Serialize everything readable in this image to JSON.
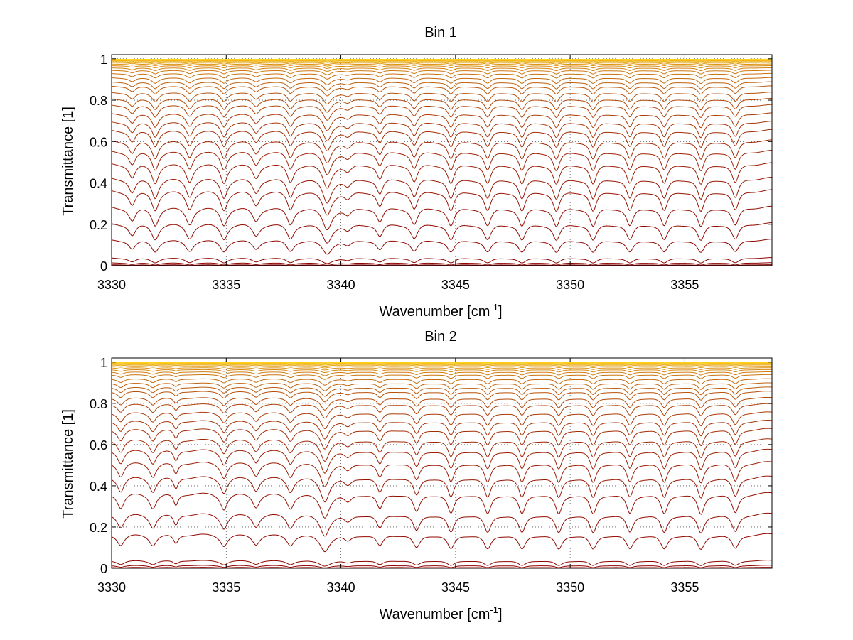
{
  "figure": {
    "background": "#ffffff"
  },
  "chart_data": [
    {
      "type": "line",
      "title": "Bin 1",
      "xlabel": "Wavenumber [cm",
      "xlabel_sup": "-1",
      "xlabel_tail": "]",
      "ylabel": "Transmittance [1]",
      "xlim": [
        3330,
        3358.8
      ],
      "ylim": [
        0,
        1.02
      ],
      "xticks": [
        3330,
        3335,
        3340,
        3345,
        3350,
        3355
      ],
      "yticks": [
        0,
        0.2,
        0.4,
        0.6,
        0.8,
        1
      ],
      "xtick_labels": [
        "3330",
        "3335",
        "3340",
        "3345",
        "3350",
        "3355"
      ],
      "ytick_labels": [
        "0",
        "0.2",
        "0.4",
        "0.6",
        "0.8",
        "1"
      ],
      "grid": true,
      "series_colors_from": "#8b0000",
      "series_colors_to": "#ffd21a",
      "baselines": [
        0.001,
        0.005,
        0.015,
        0.04,
        0.13,
        0.21,
        0.29,
        0.37,
        0.43,
        0.5,
        0.56,
        0.61,
        0.66,
        0.7,
        0.74,
        0.78,
        0.81,
        0.84,
        0.87,
        0.89,
        0.91,
        0.93,
        0.945,
        0.957,
        0.967,
        0.975,
        0.981,
        0.986,
        0.99,
        0.993,
        0.996,
        0.998
      ],
      "absorption_lines": [
        {
          "x": 3330.9,
          "depth": 0.55,
          "width": 0.17
        },
        {
          "x": 3331.9,
          "depth": 0.75,
          "width": 0.17
        },
        {
          "x": 3333.4,
          "depth": 0.7,
          "width": 0.18
        },
        {
          "x": 3334.9,
          "depth": 0.75,
          "width": 0.17
        },
        {
          "x": 3336.3,
          "depth": 0.55,
          "width": 0.18
        },
        {
          "x": 3337.8,
          "depth": 0.72,
          "width": 0.17
        },
        {
          "x": 3339.4,
          "depth": 0.97,
          "width": 0.22
        },
        {
          "x": 3340.3,
          "depth": 0.3,
          "width": 0.2
        },
        {
          "x": 3341.7,
          "depth": 0.6,
          "width": 0.16
        },
        {
          "x": 3343.2,
          "depth": 0.72,
          "width": 0.17
        },
        {
          "x": 3344.8,
          "depth": 0.8,
          "width": 0.17
        },
        {
          "x": 3346.4,
          "depth": 0.8,
          "width": 0.17
        },
        {
          "x": 3347.9,
          "depth": 0.82,
          "width": 0.17
        },
        {
          "x": 3349.4,
          "depth": 0.83,
          "width": 0.17
        },
        {
          "x": 3351.0,
          "depth": 0.83,
          "width": 0.17
        },
        {
          "x": 3352.6,
          "depth": 0.8,
          "width": 0.17
        },
        {
          "x": 3354.1,
          "depth": 0.8,
          "width": 0.17
        },
        {
          "x": 3355.7,
          "depth": 0.85,
          "width": 0.17
        },
        {
          "x": 3357.2,
          "depth": 0.78,
          "width": 0.17
        }
      ]
    },
    {
      "type": "line",
      "title": "Bin 2",
      "xlabel": "Wavenumber [cm",
      "xlabel_sup": "-1",
      "xlabel_tail": "]",
      "ylabel": "Transmittance [1]",
      "xlim": [
        3330,
        3358.8
      ],
      "ylim": [
        0,
        1.02
      ],
      "xticks": [
        3330,
        3335,
        3340,
        3345,
        3350,
        3355
      ],
      "yticks": [
        0,
        0.2,
        0.4,
        0.6,
        0.8,
        1
      ],
      "xtick_labels": [
        "3330",
        "3335",
        "3340",
        "3345",
        "3350",
        "3355"
      ],
      "ytick_labels": [
        "0",
        "0.2",
        "0.4",
        "0.6",
        "0.8",
        "1"
      ],
      "grid": true,
      "series_colors_from": "#8b0000",
      "series_colors_to": "#ffd21a",
      "baselines": [
        0.001,
        0.005,
        0.015,
        0.04,
        0.17,
        0.27,
        0.37,
        0.45,
        0.52,
        0.58,
        0.63,
        0.68,
        0.72,
        0.76,
        0.8,
        0.83,
        0.86,
        0.88,
        0.9,
        0.92,
        0.94,
        0.953,
        0.964,
        0.973,
        0.98,
        0.986,
        0.99,
        0.993,
        0.996,
        0.998
      ],
      "absorption_lines": [
        {
          "x": 3330.4,
          "depth": 0.55,
          "width": 0.17
        },
        {
          "x": 3331.8,
          "depth": 0.55,
          "width": 0.17
        },
        {
          "x": 3332.8,
          "depth": 0.45,
          "width": 0.12
        },
        {
          "x": 3334.9,
          "depth": 0.6,
          "width": 0.17
        },
        {
          "x": 3336.3,
          "depth": 0.5,
          "width": 0.17
        },
        {
          "x": 3337.8,
          "depth": 0.55,
          "width": 0.17
        },
        {
          "x": 3339.3,
          "depth": 0.97,
          "width": 0.22
        },
        {
          "x": 3340.3,
          "depth": 0.3,
          "width": 0.2
        },
        {
          "x": 3341.7,
          "depth": 0.6,
          "width": 0.16
        },
        {
          "x": 3343.3,
          "depth": 0.72,
          "width": 0.17
        },
        {
          "x": 3344.8,
          "depth": 0.8,
          "width": 0.17
        },
        {
          "x": 3346.4,
          "depth": 0.82,
          "width": 0.17
        },
        {
          "x": 3347.9,
          "depth": 0.82,
          "width": 0.17
        },
        {
          "x": 3349.5,
          "depth": 0.83,
          "width": 0.17
        },
        {
          "x": 3351.0,
          "depth": 0.83,
          "width": 0.17
        },
        {
          "x": 3352.6,
          "depth": 0.8,
          "width": 0.17
        },
        {
          "x": 3354.1,
          "depth": 0.82,
          "width": 0.17
        },
        {
          "x": 3355.7,
          "depth": 0.85,
          "width": 0.17
        },
        {
          "x": 3357.2,
          "depth": 0.78,
          "width": 0.17
        }
      ]
    }
  ]
}
